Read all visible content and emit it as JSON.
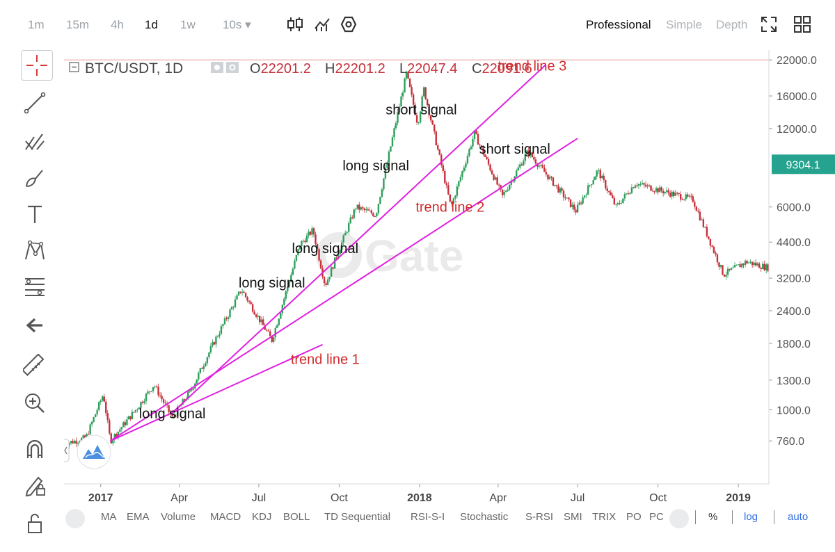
{
  "toolbar": {
    "timeframes": [
      "1m",
      "15m",
      "4h",
      "1d",
      "1w",
      "10s ▾"
    ],
    "active_timeframe": "1d",
    "icons": [
      "candlestick-icon",
      "indicator-chart-icon",
      "settings-hex-icon"
    ],
    "modes": [
      "Professional",
      "Simple",
      "Depth"
    ],
    "active_mode": "Professional",
    "right_icons": [
      "fullscreen-icon",
      "grid-layout-icon"
    ]
  },
  "left_tools": [
    "crosshair-icon",
    "trend-line-icon",
    "pitchfork-icon",
    "brush-icon",
    "text-icon",
    "pattern-icon",
    "fib-icon",
    "back-arrow-icon",
    "ruler-icon",
    "zoom-in-icon",
    "magnet-icon",
    "lock-edit-icon",
    "unlock-icon"
  ],
  "legend": {
    "symbol": "BTC/USDT, 1D",
    "o_label": "O",
    "o_value": "22201.2",
    "h_label": "H",
    "h_value": "22201.2",
    "l_label": "L",
    "l_value": "22047.4",
    "c_label": "C",
    "c_value": "22091.6"
  },
  "watermark": "Gate",
  "chart_data": {
    "type": "candlestick",
    "title": "BTC/USDT, 1D",
    "x_tick_labels": [
      "2017",
      "Apr",
      "Jul",
      "Oct",
      "2018",
      "Apr",
      "Jul",
      "Oct",
      "2019"
    ],
    "y_tick_labels": [
      "22000.0",
      "16000.0",
      "12000.0",
      "9304.1",
      "6000.0",
      "4400.0",
      "3200.0",
      "2400.0",
      "1800.0",
      "1300.0",
      "1000.0",
      "760.0"
    ],
    "y_ticks": [
      22000,
      16000,
      12000,
      6000,
      4400,
      3200,
      2400,
      1800,
      1300,
      1000,
      760
    ],
    "ylim": [
      520,
      24000
    ],
    "y_scale": "log",
    "x_range": [
      "2016-11-20",
      "2019-02-05"
    ],
    "last_price": 9304.1,
    "last_price_label": "9304.1",
    "reference_price": 22000,
    "colors": {
      "up": "#2e9e5b",
      "down": "#c6303a",
      "line": "#e020e0",
      "annotation": "#d12b2b",
      "last_price": "#26a38f"
    },
    "price_path": [
      [
        "2016-11-20",
        740
      ],
      [
        "2016-12-15",
        780
      ],
      [
        "2017-01-04",
        1150
      ],
      [
        "2017-01-12",
        760
      ],
      [
        "2017-02-10",
        1000
      ],
      [
        "2017-03-03",
        1250
      ],
      [
        "2017-03-24",
        930
      ],
      [
        "2017-04-15",
        1200
      ],
      [
        "2017-05-10",
        1800
      ],
      [
        "2017-06-11",
        2900
      ],
      [
        "2017-07-16",
        1850
      ],
      [
        "2017-08-17",
        4300
      ],
      [
        "2017-09-01",
        4900
      ],
      [
        "2017-09-15",
        3000
      ],
      [
        "2017-10-20",
        6000
      ],
      [
        "2017-11-12",
        5600
      ],
      [
        "2017-12-17",
        19500
      ],
      [
        "2017-12-30",
        12500
      ],
      [
        "2018-01-06",
        17000
      ],
      [
        "2018-02-06",
        6000
      ],
      [
        "2018-03-05",
        11500
      ],
      [
        "2018-04-06",
        6600
      ],
      [
        "2018-05-05",
        9800
      ],
      [
        "2018-06-29",
        5800
      ],
      [
        "2018-07-24",
        8300
      ],
      [
        "2018-08-14",
        6000
      ],
      [
        "2018-09-05",
        7400
      ],
      [
        "2018-11-10",
        6400
      ],
      [
        "2018-12-15",
        3300
      ],
      [
        "2019-01-10",
        3700
      ],
      [
        "2019-02-05",
        3500
      ]
    ],
    "trend_lines": [
      {
        "label": "trend line 1",
        "from": [
          "2017-01-12",
          760
        ],
        "to": [
          "2017-09-12",
          1780
        ]
      },
      {
        "label": "trend line 2",
        "from": [
          "2017-01-12",
          760
        ],
        "to": [
          "2018-07-01",
          11000
        ]
      },
      {
        "label": "trend line 3",
        "from": [
          "2017-03-24",
          975
        ],
        "to": [
          "2018-05-25",
          21000
        ]
      }
    ],
    "annotations": [
      {
        "text": "long signal",
        "date": "2017-03-24",
        "price": 930,
        "color": "black"
      },
      {
        "text": "long signal",
        "date": "2017-07-16",
        "price": 2950,
        "color": "black"
      },
      {
        "text": "long signal",
        "date": "2017-09-15",
        "price": 4000,
        "color": "black"
      },
      {
        "text": "long signal",
        "date": "2017-11-12",
        "price": 8300,
        "color": "black"
      },
      {
        "text": "short signal",
        "date": "2018-01-03",
        "price": 13600,
        "color": "black"
      },
      {
        "text": "short signal",
        "date": "2018-04-20",
        "price": 9600,
        "color": "black"
      },
      {
        "text": "trend line 1",
        "date": "2017-09-15",
        "price": 1500,
        "color": "red"
      },
      {
        "text": "trend line 2",
        "date": "2018-02-05",
        "price": 5750,
        "color": "red"
      },
      {
        "text": "trend line 3",
        "date": "2018-05-10",
        "price": 20000,
        "color": "red"
      }
    ]
  },
  "bottom": {
    "indicators": [
      "MA",
      "EMA",
      "Volume",
      "MACD",
      "KDJ",
      "BOLL",
      "TD Sequential",
      "RSI-S-I",
      "Stochastic",
      "S-RSI",
      "SMI",
      "TRIX",
      "PO",
      "PC"
    ],
    "percent": "%",
    "log": "log",
    "auto": "auto"
  }
}
